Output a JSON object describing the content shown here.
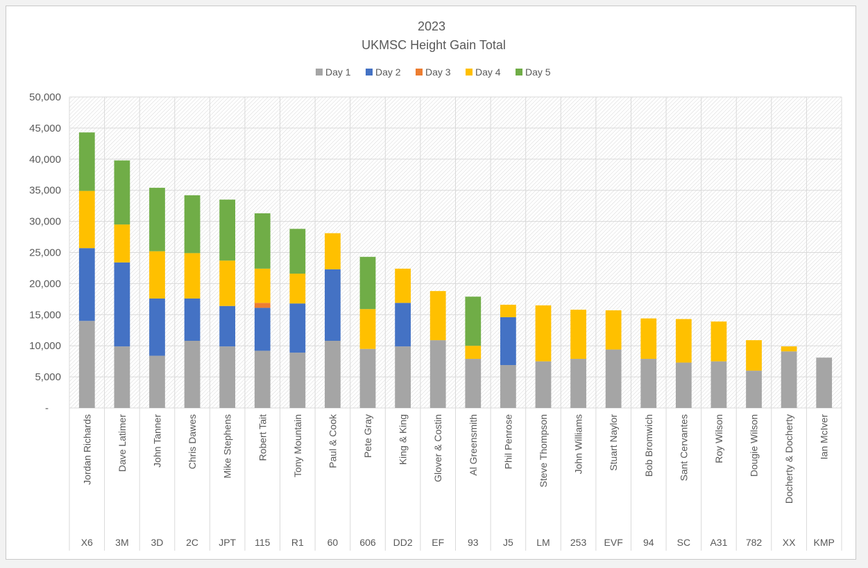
{
  "chart_data": {
    "type": "bar",
    "stacked": true,
    "title": "2023",
    "subtitle": "UKMSC Height Gain Total",
    "xlabel": "",
    "ylabel": "",
    "ylim": [
      0,
      50000
    ],
    "yticks": [
      "-",
      "5,000",
      "10,000",
      "15,000",
      "20,000",
      "25,000",
      "30,000",
      "35,000",
      "40,000",
      "45,000",
      "50,000"
    ],
    "grid": true,
    "legend_position": "top",
    "categories": [
      "Jordan Richards",
      "Dave Latimer",
      "John Tanner",
      "Chris Dawes",
      "Mike Stephens",
      "Robert Tait",
      "Tony Mountain",
      "Paul & Cook",
      "Pete Gray",
      "King & King",
      "Glover & Costin",
      "Al Greensmith",
      "Phil Penrose",
      "Steve Thompson",
      "John Williams",
      "Stuart Naylor",
      "Bob Bromwich",
      "Sant Cervantes",
      "Roy Wilson",
      "Dougie Wilson",
      "Docherty & Docherty",
      "Ian McIver"
    ],
    "codes": [
      "X6",
      "3M",
      "3D",
      "2C",
      "JPT",
      "115",
      "R1",
      "60",
      "606",
      "DD2",
      "EF",
      "93",
      "J5",
      "LM",
      "253",
      "EVF",
      "94",
      "SC",
      "A31",
      "782",
      "XX",
      "KMP"
    ],
    "series": [
      {
        "name": "Day 1",
        "color": "#A5A5A5",
        "values": [
          14000,
          9900,
          8400,
          10800,
          9900,
          9200,
          8900,
          10800,
          9500,
          9900,
          10900,
          7900,
          6900,
          7500,
          7900,
          9400,
          7900,
          7300,
          7500,
          6000,
          9100,
          8100
        ]
      },
      {
        "name": "Day 2",
        "color": "#4472C4",
        "values": [
          11700,
          13500,
          9200,
          6800,
          6500,
          6900,
          7900,
          11500,
          0,
          7000,
          0,
          0,
          7700,
          0,
          0,
          0,
          0,
          0,
          0,
          0,
          0,
          0
        ]
      },
      {
        "name": "Day 3",
        "color": "#ED7D31",
        "values": [
          0,
          0,
          0,
          0,
          0,
          800,
          0,
          0,
          0,
          0,
          0,
          0,
          0,
          0,
          0,
          0,
          0,
          0,
          0,
          0,
          0,
          0
        ]
      },
      {
        "name": "Day 4",
        "color": "#FFC000",
        "values": [
          9200,
          6100,
          7600,
          7300,
          7300,
          5500,
          4800,
          5800,
          6400,
          5500,
          7900,
          2100,
          2000,
          9000,
          7900,
          6300,
          6500,
          7000,
          6400,
          4900,
          800,
          0
        ]
      },
      {
        "name": "Day 5",
        "color": "#70AD47",
        "values": [
          9400,
          10300,
          10200,
          9300,
          9800,
          8900,
          7200,
          0,
          8400,
          0,
          0,
          7900,
          0,
          0,
          0,
          0,
          0,
          0,
          0,
          0,
          0,
          0
        ]
      }
    ]
  }
}
